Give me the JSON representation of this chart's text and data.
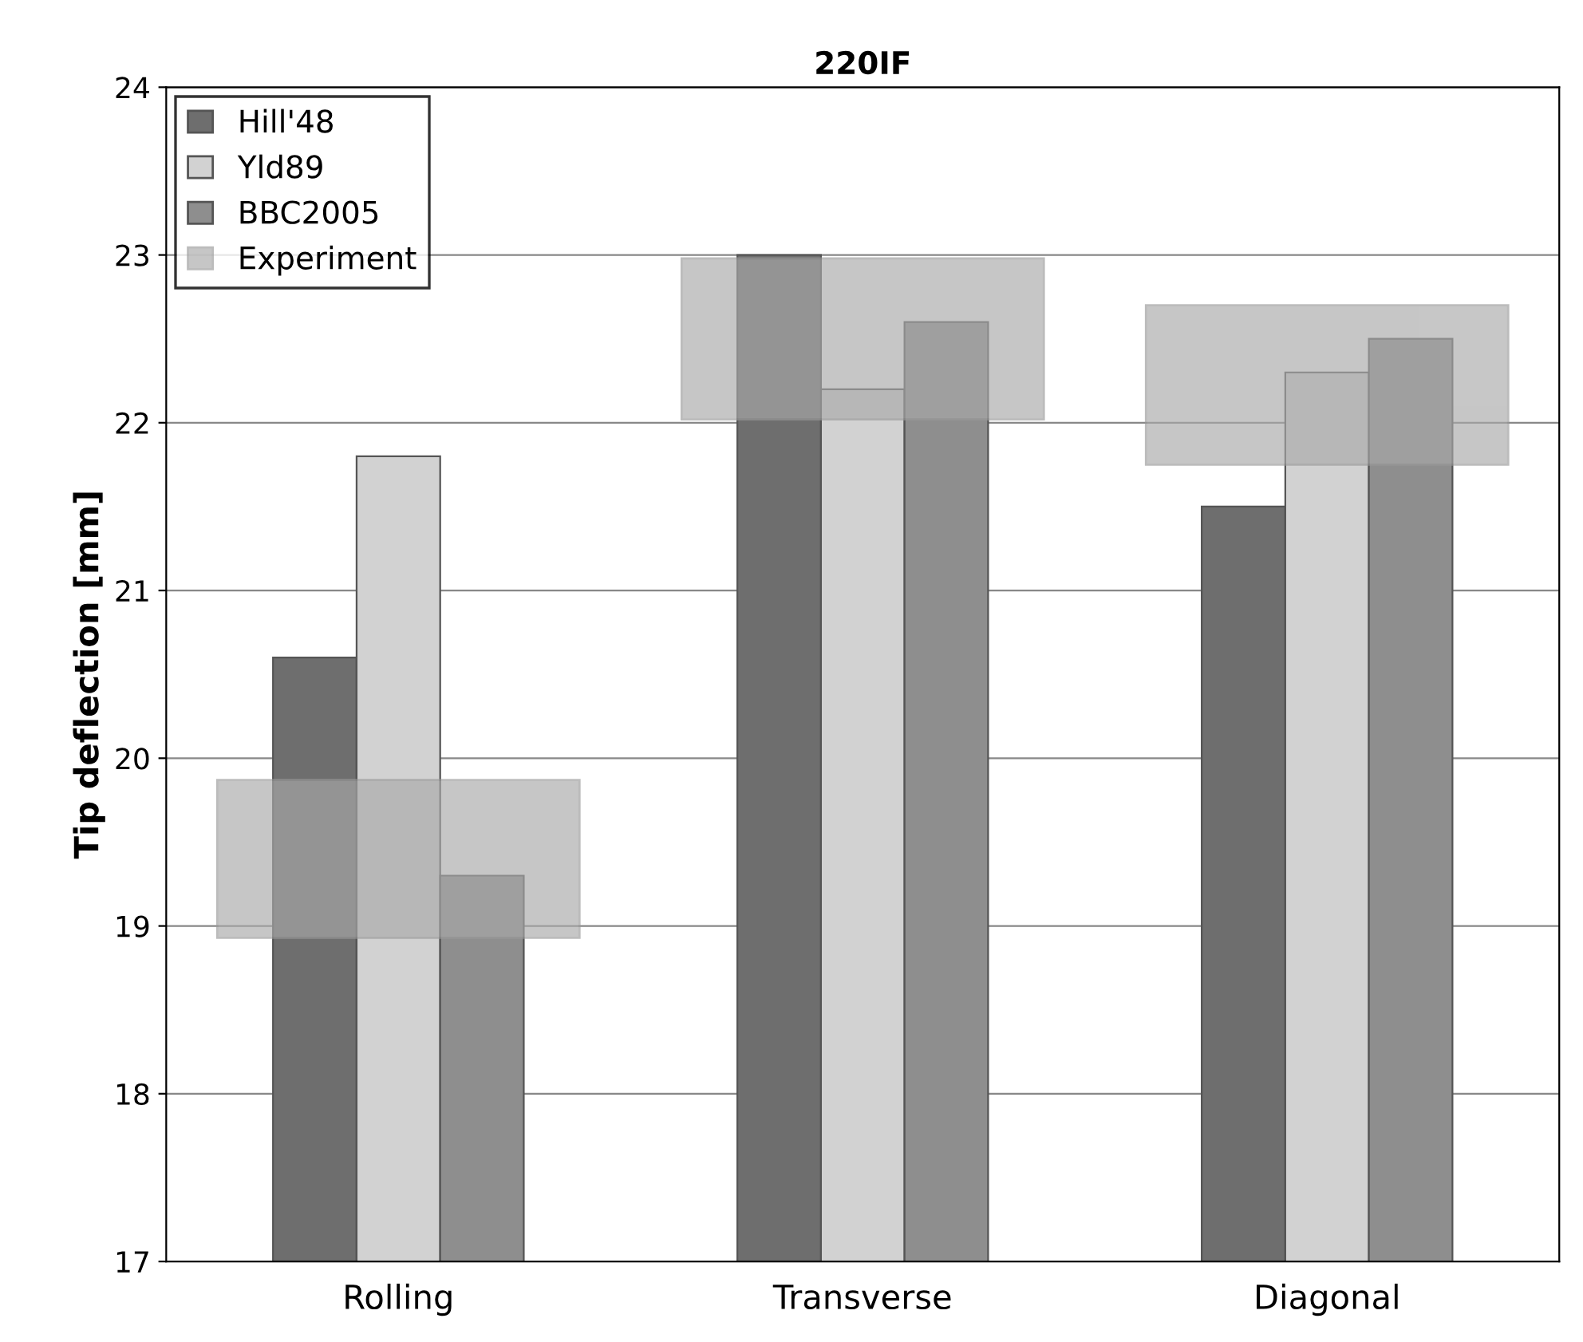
{
  "chart_data": {
    "type": "bar",
    "title": "220IF",
    "ylabel": "Tip deflection [mm]",
    "categories": [
      "Rolling",
      "Transverse",
      "Diagonal"
    ],
    "series": [
      {
        "name": "Hill'48",
        "color": "#6e6e6e",
        "values": [
          20.6,
          23.0,
          21.5
        ]
      },
      {
        "name": "Yld89",
        "color": "#d2d2d2",
        "values": [
          21.8,
          22.2,
          22.3
        ]
      },
      {
        "name": "BBC2005",
        "color": "#8e8e8e",
        "values": [
          19.3,
          22.6,
          22.5
        ]
      },
      {
        "name": "Experiment",
        "color": "#a9a9a9",
        "base": [
          18.93,
          22.02,
          21.75
        ],
        "values": [
          0.94,
          0.96,
          0.95
        ]
      }
    ],
    "ylim": [
      17,
      24
    ],
    "yticks": [
      17,
      18,
      19,
      20,
      21,
      22,
      23,
      24
    ],
    "grid": "y",
    "legend": "top left"
  }
}
